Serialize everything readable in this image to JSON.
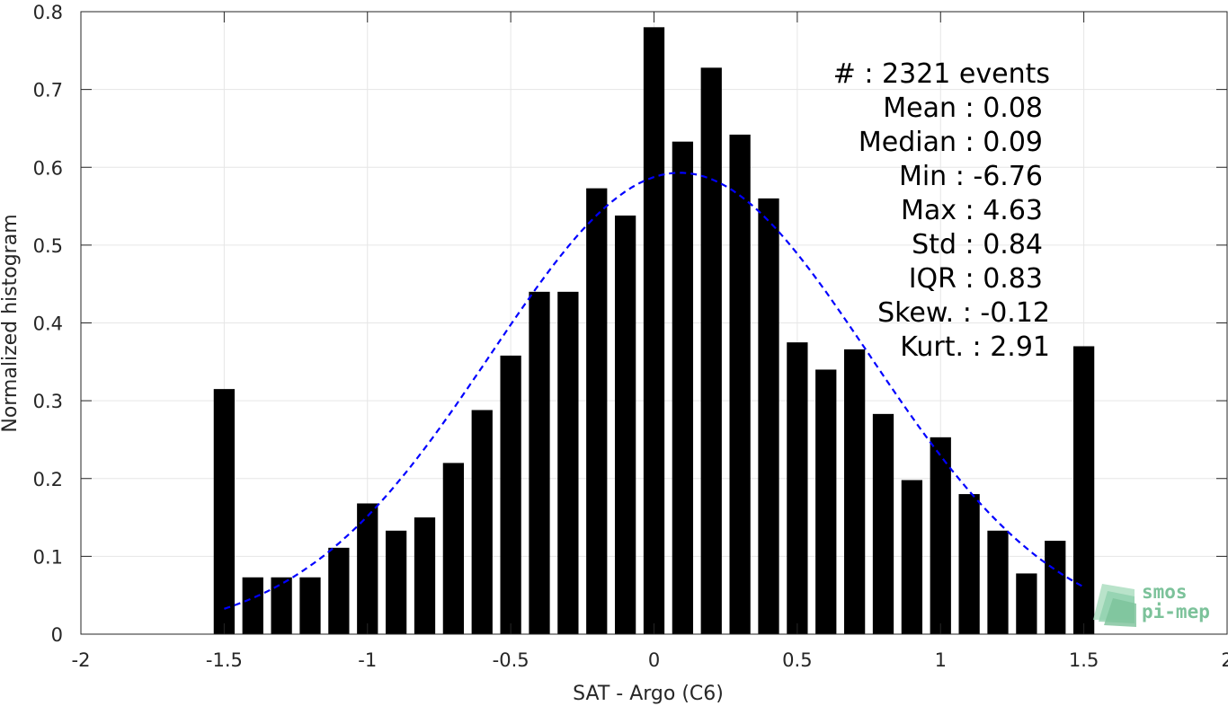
{
  "chart_data": {
    "type": "bar",
    "title": "",
    "xlabel": "SAT - Argo (C6)",
    "ylabel": "Normalized histogram",
    "xlim": [
      -2,
      2
    ],
    "ylim": [
      0,
      0.8
    ],
    "x_ticks": [
      "-2",
      "-1.5",
      "-1",
      "-0.5",
      "0",
      "0.5",
      "1",
      "1.5",
      "2"
    ],
    "y_ticks": [
      "0",
      "0.1",
      "0.2",
      "0.3",
      "0.4",
      "0.5",
      "0.6",
      "0.7",
      "0.8"
    ],
    "grid": true,
    "bar_color": "#000000",
    "bars": {
      "x": [
        -1.5,
        -1.4,
        -1.3,
        -1.2,
        -1.1,
        -1.0,
        -0.9,
        -0.8,
        -0.7,
        -0.6,
        -0.5,
        -0.4,
        -0.3,
        -0.2,
        -0.1,
        0.0,
        0.1,
        0.2,
        0.3,
        0.4,
        0.5,
        0.6,
        0.7,
        0.8,
        0.9,
        1.0,
        1.1,
        1.2,
        1.3,
        1.4,
        1.5
      ],
      "values": [
        0.315,
        0.073,
        0.073,
        0.073,
        0.111,
        0.168,
        0.133,
        0.15,
        0.22,
        0.288,
        0.358,
        0.44,
        0.44,
        0.573,
        0.538,
        0.78,
        0.633,
        0.728,
        0.642,
        0.56,
        0.375,
        0.34,
        0.366,
        0.283,
        0.198,
        0.253,
        0.18,
        0.133,
        0.078,
        0.12,
        0.37
      ]
    },
    "fit_curve": {
      "style": "dashed",
      "color": "#0000ff",
      "mean": 0.09,
      "std": 0.66,
      "peak": 0.593,
      "x_range": [
        -1.5,
        1.5
      ]
    },
    "annotation_lines": [
      "#  : 2321 events",
      "Mean : 0.08",
      "Median : 0.09",
      "Min : -6.76",
      "Max : 4.63",
      "Std : 0.84",
      "IQR : 0.83",
      "Skew. : -0.12",
      "Kurt. : 2.91"
    ],
    "logo": {
      "line1": "smos",
      "line2": "pi-mep",
      "color": "#7cc29a"
    }
  }
}
